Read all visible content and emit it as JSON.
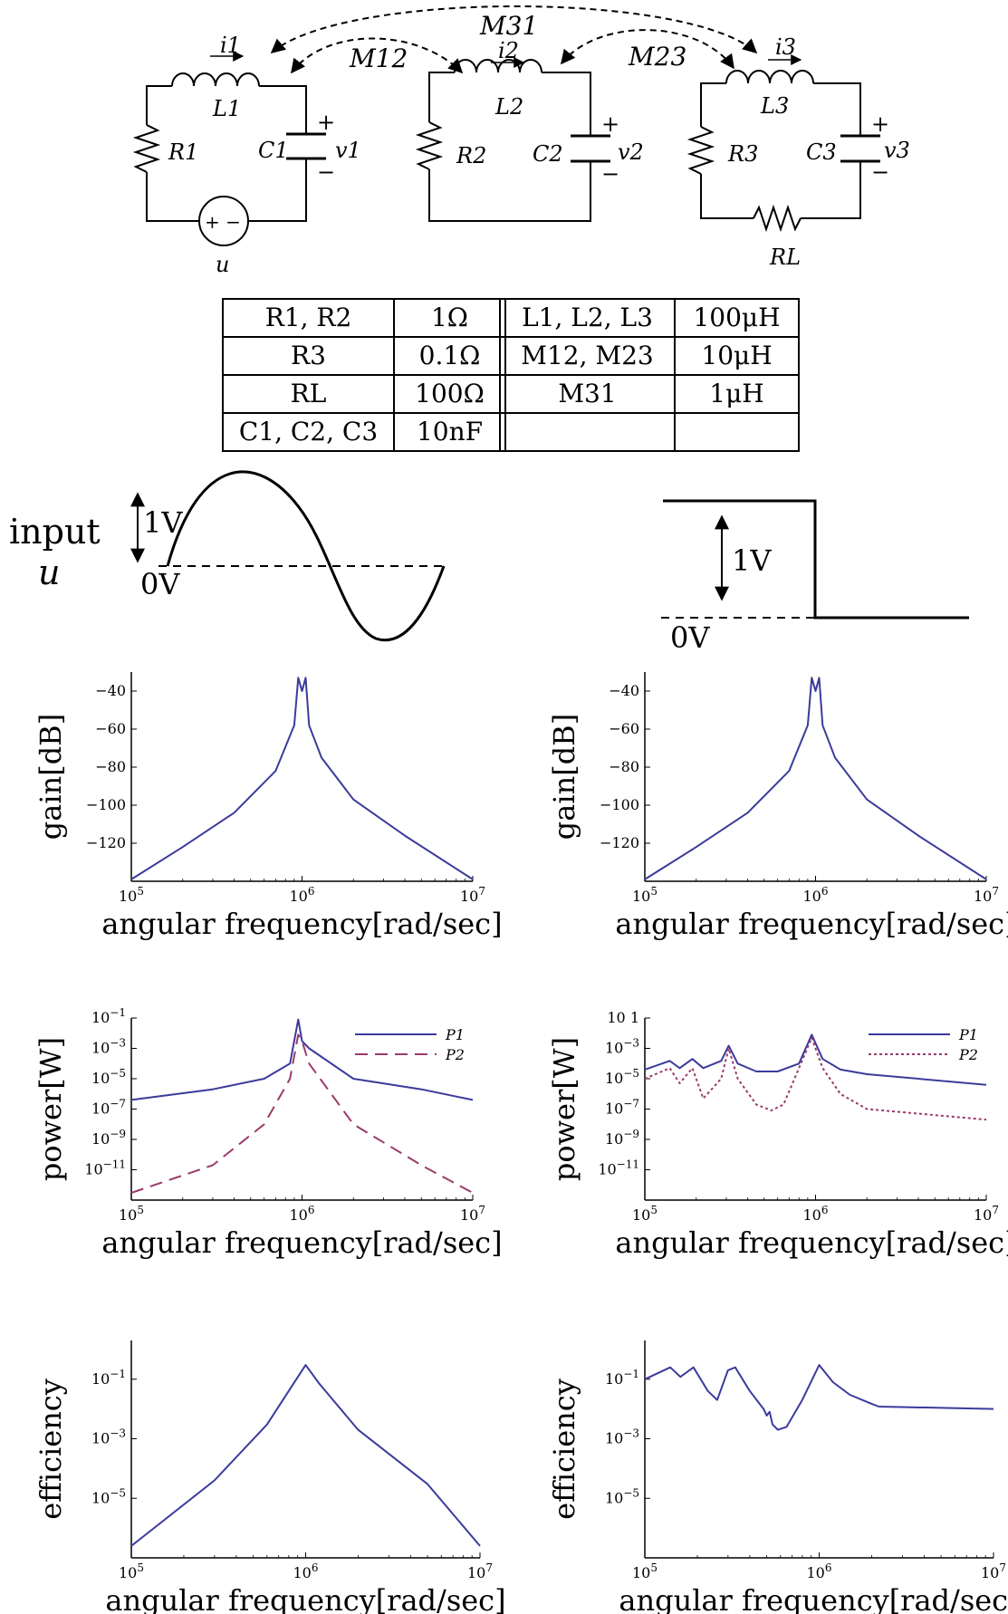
{
  "circuit": {
    "currents": [
      "i1",
      "i2",
      "i3"
    ],
    "inductors": [
      "L1",
      "L2",
      "L3"
    ],
    "resistors": [
      "R1",
      "R2",
      "R3"
    ],
    "capacitors": [
      "C1",
      "C2",
      "C3"
    ],
    "voltages": [
      "v1",
      "v2",
      "v3"
    ],
    "load": "RL",
    "source": "u",
    "mutuals": [
      "M12",
      "M23",
      "M31"
    ],
    "plus": "+",
    "minus": "−",
    "source_symbol": "+ −"
  },
  "params_table": [
    [
      "R1, R2",
      "1Ω",
      "L1, L2, L3",
      "100μH"
    ],
    [
      "R3",
      "0.1Ω",
      "M12, M23",
      "10μH"
    ],
    [
      "RL",
      "100Ω",
      "M31",
      "1μH"
    ],
    [
      "C1, C2, C3",
      "10nF",
      "",
      ""
    ]
  ],
  "input": {
    "label_line1": "input",
    "label_line2": "u",
    "amp_label": "1V",
    "zero_label": "0V",
    "step_amp_label": "1V",
    "step_zero_label": "0V"
  },
  "colors": {
    "p1": "#3b3b9c",
    "p2": "#9b3a6b",
    "axis": "#000000"
  },
  "chart_data": [
    {
      "type": "line",
      "position": "left",
      "xscale": "log",
      "yscale": "linear",
      "xlabel": "angular frequency[rad/sec]",
      "ylabel": "gain[dB]",
      "xlim": [
        100000,
        10000000
      ],
      "ylim": [
        -140,
        -30
      ],
      "xticks": [
        "10^5",
        "10^6",
        "10^7"
      ],
      "yticks": [
        "−40",
        "−60",
        "−80",
        "−100",
        "−120"
      ],
      "series": [
        {
          "x": [
            100000,
            200000,
            400000,
            700000,
            900000,
            950000,
            1000000,
            1050000,
            1100000,
            1300000,
            2000000,
            4000000,
            10000000
          ],
          "y": [
            -139,
            -122,
            -104,
            -82,
            -58,
            -33,
            -40,
            -33,
            -58,
            -75,
            -97,
            -116,
            -139
          ]
        }
      ]
    },
    {
      "type": "line",
      "position": "right",
      "xscale": "log",
      "yscale": "linear",
      "xlabel": "angular frequency[rad/sec]",
      "ylabel": "gain[dB]",
      "xlim": [
        100000,
        10000000
      ],
      "ylim": [
        -140,
        -30
      ],
      "xticks": [
        "10^5",
        "10^6",
        "10^7"
      ],
      "yticks": [
        "−40",
        "−60",
        "−80",
        "−100",
        "−120"
      ],
      "series": [
        {
          "x": [
            100000,
            200000,
            400000,
            700000,
            900000,
            950000,
            1000000,
            1050000,
            1100000,
            1300000,
            2000000,
            4000000,
            10000000
          ],
          "y": [
            -139,
            -122,
            -104,
            -82,
            -58,
            -33,
            -40,
            -33,
            -58,
            -75,
            -97,
            -116,
            -139
          ]
        }
      ]
    },
    {
      "type": "line",
      "position": "left",
      "xscale": "log",
      "yscale": "log",
      "xlabel": "angular frequency[rad/sec]",
      "ylabel": "power[W]",
      "xlim": [
        100000,
        10000000
      ],
      "ylim": [
        1e-13,
        0.1
      ],
      "xticks": [
        "10^5",
        "10^6",
        "10^7"
      ],
      "yticks": [
        "10^-1",
        "10^-3",
        "10^-5",
        "10^-7",
        "10^-9",
        "10^-11"
      ],
      "legend": "top-right",
      "series": [
        {
          "name": "P1",
          "style": "solid",
          "x": [
            100000,
            300000,
            600000,
            850000,
            950000,
            1000000,
            1100000,
            2000000,
            5000000,
            10000000
          ],
          "y": [
            4e-07,
            2e-06,
            1e-05,
            0.0001,
            0.08,
            0.003,
            0.001,
            1e-05,
            2e-06,
            4e-07
          ]
        },
        {
          "name": "P2",
          "style": "dashed",
          "x": [
            100000,
            300000,
            600000,
            850000,
            950000,
            1000000,
            1100000,
            2000000,
            5000000,
            10000000
          ],
          "y": [
            3e-13,
            2e-11,
            1e-08,
            1e-05,
            0.008,
            0.003,
            0.0001,
            1e-08,
            2e-11,
            3e-13
          ]
        }
      ]
    },
    {
      "type": "line",
      "position": "right",
      "xscale": "log",
      "yscale": "log",
      "xlabel": "angular frequency[rad/sec]",
      "ylabel": "power[W]",
      "xlim": [
        100000,
        10000000
      ],
      "ylim": [
        1e-13,
        0.1
      ],
      "xticks": [
        "10^5",
        "10^6",
        "10^7"
      ],
      "yticks": [
        "10 1",
        "10^-3",
        "10^-5",
        "10^-7",
        "10^-9",
        "10^-11"
      ],
      "legend": "top-right",
      "series": [
        {
          "name": "P1",
          "style": "solid",
          "x": [
            100000,
            140000,
            160000,
            190000,
            220000,
            280000,
            310000,
            350000,
            450000,
            600000,
            800000,
            950000,
            1100000,
            1400000,
            2000000,
            10000000
          ],
          "y": [
            4e-05,
            0.00015,
            5e-05,
            0.0002,
            5e-05,
            0.00015,
            0.0015,
            0.0001,
            3e-05,
            3e-05,
            0.0001,
            0.008,
            0.0002,
            4e-05,
            2e-05,
            4e-06
          ]
        },
        {
          "name": "P2",
          "style": "dotted",
          "x": [
            100000,
            140000,
            160000,
            190000,
            220000,
            280000,
            310000,
            350000,
            450000,
            550000,
            650000,
            800000,
            950000,
            1100000,
            1400000,
            2000000,
            10000000
          ],
          "y": [
            1e-05,
            5e-05,
            5e-06,
            5e-05,
            5e-07,
            1e-05,
            0.001,
            1e-05,
            2e-07,
            8e-08,
            2e-07,
            5e-05,
            0.005,
            5e-05,
            1e-06,
            1e-07,
            2e-08
          ]
        }
      ]
    },
    {
      "type": "line",
      "position": "left",
      "xscale": "log",
      "yscale": "log",
      "xlabel": "angular frequency[rad/sec]",
      "ylabel": "efficiency",
      "xlim": [
        100000,
        10000000
      ],
      "ylim": [
        1e-07,
        2
      ],
      "xticks": [
        "10^5",
        "10^6",
        "10^7"
      ],
      "yticks": [
        "10^-1",
        "10^-3",
        "10^-5"
      ],
      "series": [
        {
          "x": [
            100000,
            300000,
            600000,
            850000,
            1000000,
            1200000,
            2000000,
            5000000,
            10000000
          ],
          "y": [
            2.5e-07,
            4e-05,
            0.003,
            0.07,
            0.3,
            0.07,
            0.002,
            3e-05,
            2.5e-07
          ]
        }
      ]
    },
    {
      "type": "line",
      "position": "right",
      "xscale": "log",
      "yscale": "log",
      "xlabel": "angular frequency[rad/sec]",
      "ylabel": "efficiency",
      "xlim": [
        100000,
        10000000
      ],
      "ylim": [
        1e-07,
        2
      ],
      "xticks": [
        "10^5",
        "10^6",
        "10^7"
      ],
      "yticks": [
        "10^-1",
        "10^-3",
        "10^-5"
      ],
      "series": [
        {
          "x": [
            100000,
            140000,
            160000,
            190000,
            230000,
            260000,
            300000,
            330000,
            400000,
            480000,
            500000,
            520000,
            540000,
            580000,
            650000,
            800000,
            1000000,
            1200000,
            1500000,
            2000000,
            2200000,
            10000000
          ],
          "y": [
            0.1,
            0.25,
            0.12,
            0.25,
            0.04,
            0.02,
            0.2,
            0.25,
            0.04,
            0.01,
            0.006,
            0.008,
            0.003,
            0.002,
            0.0025,
            0.02,
            0.3,
            0.08,
            0.03,
            0.015,
            0.012,
            0.01
          ]
        }
      ]
    }
  ]
}
